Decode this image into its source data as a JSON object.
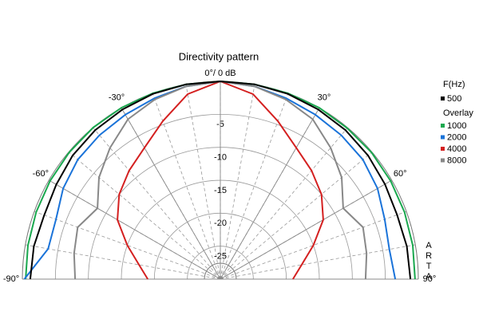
{
  "chart_data": {
    "type": "polar",
    "title": "Directivity pattern",
    "theta": [
      -90,
      -80,
      -70,
      -60,
      -50,
      -40,
      -30,
      -20,
      -10,
      0,
      10,
      20,
      30,
      40,
      50,
      60,
      70,
      80,
      90
    ],
    "thetalim": [
      -90,
      90
    ],
    "thetaticks": [
      {
        "value": -90,
        "label": "-90°"
      },
      {
        "value": -60,
        "label": "-60°"
      },
      {
        "value": -30,
        "label": "-30°"
      },
      {
        "value": 0,
        "label": "0°/ 0 dB"
      },
      {
        "value": 30,
        "label": "30°"
      },
      {
        "value": 60,
        "label": "60°"
      },
      {
        "value": 90,
        "label": "90°"
      }
    ],
    "rlim": [
      -30,
      0
    ],
    "rticks": [
      -25,
      -20,
      -15,
      -10,
      -5
    ],
    "grid": true,
    "legend_title": "F(Hz)",
    "overlay_label": "Overlay",
    "watermark": "ARTA",
    "series": [
      {
        "name": "500",
        "color": "#000000",
        "values": [
          -1.2,
          -1.3,
          -1.6,
          -1.3,
          -0.8,
          -0.5,
          -0.3,
          -0.1,
          0,
          0,
          0,
          -0.1,
          -0.3,
          -0.5,
          -0.8,
          -1.2,
          -1.5,
          -1.3,
          -1.2
        ]
      },
      {
        "name": "1000",
        "color": "#1aa84f",
        "values": [
          -0.5,
          -0.4,
          -0.3,
          -0.2,
          -0.1,
          0,
          0,
          0,
          0,
          0,
          0,
          0,
          0,
          -0.1,
          -0.1,
          -0.2,
          -0.3,
          -0.4,
          -0.5
        ]
      },
      {
        "name": "2000",
        "color": "#1a73d9",
        "values": [
          -0.3,
          -3.5,
          -3.5,
          -2.5,
          -1.8,
          -1.5,
          -1.2,
          -0.8,
          -0.3,
          0,
          -0.3,
          -0.8,
          -1.2,
          -1.5,
          -1.8,
          -2.5,
          -3.5,
          -4,
          -3.5
        ]
      },
      {
        "name": "4000",
        "color": "#d42020",
        "values": [
          -19,
          -17.5,
          -15,
          -12,
          -10,
          -8.5,
          -7,
          -4.5,
          -1.5,
          0,
          -1.5,
          -4.5,
          -7,
          -8.5,
          -10,
          -12,
          -15,
          -17.5,
          -19
        ]
      },
      {
        "name": "8000",
        "color": "#888888",
        "values": [
          -8,
          -7.5,
          -7,
          -8.5,
          -6,
          -4,
          -2,
          -1,
          -0.3,
          0,
          -0.3,
          -1,
          -2,
          -4,
          -6,
          -8.5,
          -7,
          -7.5,
          -8
        ]
      }
    ]
  }
}
